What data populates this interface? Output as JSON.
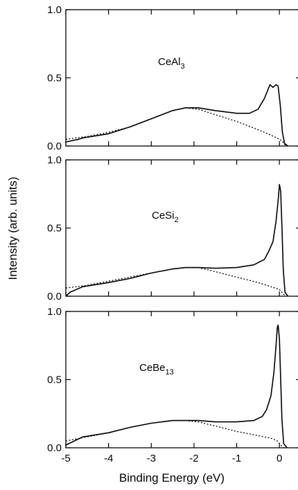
{
  "figure": {
    "xlabel": "Binding Energy (eV)",
    "ylabel": "Intensity (arb. units)"
  },
  "chart_data": [
    {
      "type": "line",
      "label_base": "CeAl",
      "label_sub": "3",
      "xlim": [
        -5,
        0.5
      ],
      "ylim": [
        0,
        1.0
      ],
      "xticks": [
        "-5",
        "-4",
        "-3",
        "-2",
        "-1",
        "0"
      ],
      "yticks": [
        "0.0",
        "0.5",
        "1.0"
      ],
      "series": [
        {
          "style": "solid",
          "points": [
            [
              -5.0,
              0.03
            ],
            [
              -4.7,
              0.05
            ],
            [
              -4.6,
              0.06
            ],
            [
              -4.0,
              0.09
            ],
            [
              -3.5,
              0.14
            ],
            [
              -3.0,
              0.2
            ],
            [
              -2.5,
              0.26
            ],
            [
              -2.2,
              0.28
            ],
            [
              -1.9,
              0.28
            ],
            [
              -1.5,
              0.26
            ],
            [
              -1.0,
              0.24
            ],
            [
              -0.7,
              0.24
            ],
            [
              -0.5,
              0.27
            ],
            [
              -0.35,
              0.35
            ],
            [
              -0.22,
              0.45
            ],
            [
              -0.15,
              0.43
            ],
            [
              -0.08,
              0.45
            ],
            [
              -0.03,
              0.44
            ],
            [
              0.02,
              0.3
            ],
            [
              0.07,
              0.1
            ],
            [
              0.12,
              0.02
            ],
            [
              0.2,
              0.0
            ]
          ]
        },
        {
          "style": "dotted",
          "points": [
            [
              -5.0,
              0.05
            ],
            [
              -4.5,
              0.07
            ],
            [
              -4.0,
              0.1
            ],
            [
              -3.5,
              0.14
            ],
            [
              -3.0,
              0.2
            ],
            [
              -2.5,
              0.26
            ],
            [
              -2.2,
              0.28
            ],
            [
              -1.9,
              0.27
            ],
            [
              -1.5,
              0.23
            ],
            [
              -1.0,
              0.18
            ],
            [
              -0.5,
              0.12
            ],
            [
              -0.2,
              0.08
            ],
            [
              0.0,
              0.05
            ],
            [
              0.08,
              0.03
            ],
            [
              0.15,
              0.0
            ]
          ]
        }
      ]
    },
    {
      "type": "line",
      "label_base": "CeSi",
      "label_sub": "2",
      "xlim": [
        -5,
        0.5
      ],
      "ylim": [
        0,
        1.0
      ],
      "xticks": [
        "-5",
        "-4",
        "-3",
        "-2",
        "-1",
        "0"
      ],
      "yticks": [
        "0.0",
        "0.5",
        "1.0"
      ],
      "series": [
        {
          "style": "solid",
          "points": [
            [
              -5.0,
              0.0
            ],
            [
              -4.9,
              0.03
            ],
            [
              -4.6,
              0.07
            ],
            [
              -4.0,
              0.1
            ],
            [
              -3.5,
              0.13
            ],
            [
              -3.0,
              0.17
            ],
            [
              -2.5,
              0.2
            ],
            [
              -2.2,
              0.21
            ],
            [
              -1.9,
              0.21
            ],
            [
              -1.5,
              0.205
            ],
            [
              -1.0,
              0.21
            ],
            [
              -0.6,
              0.23
            ],
            [
              -0.35,
              0.27
            ],
            [
              -0.25,
              0.33
            ],
            [
              -0.15,
              0.4
            ],
            [
              -0.08,
              0.55
            ],
            [
              -0.03,
              0.7
            ],
            [
              0.0,
              0.82
            ],
            [
              0.03,
              0.77
            ],
            [
              0.06,
              0.5
            ],
            [
              0.09,
              0.2
            ],
            [
              0.13,
              0.03
            ],
            [
              0.2,
              0.0
            ]
          ]
        },
        {
          "style": "dotted",
          "points": [
            [
              -5.0,
              0.06
            ],
            [
              -4.5,
              0.08
            ],
            [
              -4.0,
              0.11
            ],
            [
              -3.5,
              0.14
            ],
            [
              -3.0,
              0.17
            ],
            [
              -2.5,
              0.2
            ],
            [
              -2.2,
              0.21
            ],
            [
              -1.9,
              0.21
            ],
            [
              -1.5,
              0.18
            ],
            [
              -1.0,
              0.14
            ],
            [
              -0.5,
              0.1
            ],
            [
              -0.2,
              0.07
            ],
            [
              0.0,
              0.05
            ],
            [
              0.08,
              0.02
            ],
            [
              0.15,
              0.0
            ]
          ]
        }
      ]
    },
    {
      "type": "line",
      "label_base": "CeBe",
      "label_sub": "13",
      "xlim": [
        -5,
        0.5
      ],
      "ylim": [
        0,
        1.0
      ],
      "xticks": [
        "-5",
        "-4",
        "-3",
        "-2",
        "-1",
        "0"
      ],
      "yticks": [
        "0.0",
        "0.5",
        "1.0"
      ],
      "series": [
        {
          "style": "solid",
          "points": [
            [
              -5.0,
              0.02
            ],
            [
              -4.8,
              0.05
            ],
            [
              -4.6,
              0.08
            ],
            [
              -4.0,
              0.11
            ],
            [
              -3.5,
              0.15
            ],
            [
              -3.0,
              0.18
            ],
            [
              -2.5,
              0.2
            ],
            [
              -2.2,
              0.2
            ],
            [
              -1.9,
              0.2
            ],
            [
              -1.5,
              0.19
            ],
            [
              -1.0,
              0.19
            ],
            [
              -0.6,
              0.2
            ],
            [
              -0.4,
              0.23
            ],
            [
              -0.3,
              0.28
            ],
            [
              -0.2,
              0.38
            ],
            [
              -0.13,
              0.55
            ],
            [
              -0.08,
              0.75
            ],
            [
              -0.05,
              0.88
            ],
            [
              -0.03,
              0.9
            ],
            [
              0.0,
              0.8
            ],
            [
              0.03,
              0.5
            ],
            [
              0.06,
              0.2
            ],
            [
              0.1,
              0.03
            ],
            [
              0.18,
              0.0
            ]
          ]
        },
        {
          "style": "dotted",
          "points": [
            [
              -5.0,
              0.05
            ],
            [
              -4.5,
              0.08
            ],
            [
              -4.0,
              0.11
            ],
            [
              -3.5,
              0.15
            ],
            [
              -3.0,
              0.18
            ],
            [
              -2.5,
              0.2
            ],
            [
              -2.2,
              0.2
            ],
            [
              -1.9,
              0.19
            ],
            [
              -1.5,
              0.16
            ],
            [
              -1.0,
              0.12
            ],
            [
              -0.5,
              0.09
            ],
            [
              -0.2,
              0.07
            ],
            [
              -0.05,
              0.05
            ],
            [
              0.03,
              0.02
            ],
            [
              0.1,
              0.0
            ]
          ]
        }
      ]
    }
  ]
}
